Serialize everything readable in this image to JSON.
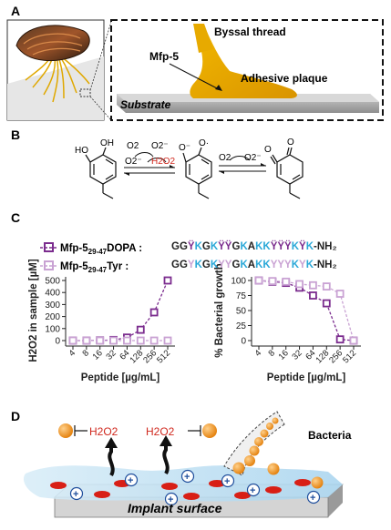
{
  "panels": {
    "a": {
      "label": "A",
      "byssal_thread": "Byssal thread",
      "mfp": "Mfp-5",
      "plaque": "Adhesive plaque",
      "substrate": "Substrate"
    },
    "b": {
      "label": "B",
      "o2_left_top": "O2",
      "o2m_left_top": "O2⁻",
      "o2m_left_bottom": "O2⁻",
      "h2o2": "H2O2",
      "o2_right": "O2",
      "o2m_right": "O2⁻",
      "oh1": "HO",
      "oh2": "OH",
      "om1": "O⁻",
      "om2": "O·",
      "o1": "O",
      "o2": "O"
    },
    "c": {
      "label": "C",
      "legend": [
        {
          "name_prefix": "Mfp-5",
          "name_sub": "29-47",
          "name_suffix": "DOPA :",
          "color": "#7B2C8E"
        },
        {
          "name_prefix": "Mfp-5",
          "name_sub": "29-47",
          "name_suffix": "Tyr :",
          "color": "#C9A2D3"
        }
      ],
      "seq_dopa": [
        {
          "t": "GG",
          "c": "#222"
        },
        {
          "t": "Ÿ",
          "c": "#7B2C8E"
        },
        {
          "t": "K",
          "c": "#2AA8D8"
        },
        {
          "t": "G",
          "c": "#222"
        },
        {
          "t": "K",
          "c": "#2AA8D8"
        },
        {
          "t": "ŸŸ",
          "c": "#7B2C8E"
        },
        {
          "t": "G",
          "c": "#222"
        },
        {
          "t": "K",
          "c": "#2AA8D8"
        },
        {
          "t": "A",
          "c": "#222"
        },
        {
          "t": "KK",
          "c": "#2AA8D8"
        },
        {
          "t": "ŸŸŸ",
          "c": "#7B2C8E"
        },
        {
          "t": "K",
          "c": "#2AA8D8"
        },
        {
          "t": "Ÿ",
          "c": "#7B2C8E"
        },
        {
          "t": "K",
          "c": "#2AA8D8"
        },
        {
          "t": "-NH₂",
          "c": "#222"
        }
      ],
      "seq_tyr": [
        {
          "t": "GG",
          "c": "#222"
        },
        {
          "t": "Y",
          "c": "#C9A2D3"
        },
        {
          "t": "K",
          "c": "#2AA8D8"
        },
        {
          "t": "G",
          "c": "#222"
        },
        {
          "t": "K",
          "c": "#2AA8D8"
        },
        {
          "t": "YY",
          "c": "#C9A2D3"
        },
        {
          "t": "G",
          "c": "#222"
        },
        {
          "t": "K",
          "c": "#2AA8D8"
        },
        {
          "t": "A",
          "c": "#222"
        },
        {
          "t": "KK",
          "c": "#2AA8D8"
        },
        {
          "t": "YYY",
          "c": "#C9A2D3"
        },
        {
          "t": "K",
          "c": "#2AA8D8"
        },
        {
          "t": "Y",
          "c": "#C9A2D3"
        },
        {
          "t": "K",
          "c": "#2AA8D8"
        },
        {
          "t": "-NH₂",
          "c": "#222"
        }
      ]
    },
    "d": {
      "label": "D",
      "h2o2_left": "H2O2",
      "h2o2_right": "H2O2",
      "bacteria": "Bacteria",
      "implant": "Implant surface"
    }
  },
  "chart_data": [
    {
      "type": "line",
      "ylabel": "H2O2 in sample [µM]",
      "xlabel": "Peptide [µg/mL]",
      "x": [
        "4",
        "8",
        "16",
        "32",
        "64",
        "128",
        "256",
        "512"
      ],
      "ylim": [
        0,
        500
      ],
      "yticks": [
        0,
        100,
        200,
        300,
        400,
        500
      ],
      "series": [
        {
          "name": "Mfp-5 29-47 DOPA",
          "color": "#7B2C8E",
          "values": [
            0,
            0,
            2,
            5,
            25,
            90,
            235,
            500
          ]
        },
        {
          "name": "Mfp-5 29-47 Tyr",
          "color": "#C9A2D3",
          "values": [
            0,
            0,
            0,
            0,
            0,
            0,
            0,
            0
          ]
        }
      ]
    },
    {
      "type": "line",
      "ylabel": "% Bacterial growth",
      "xlabel": "Peptide [µg/mL]",
      "x": [
        "4",
        "8",
        "16",
        "32",
        "64",
        "128",
        "256",
        "512"
      ],
      "ylim": [
        0,
        100
      ],
      "yticks": [
        0,
        25,
        50,
        75,
        100
      ],
      "series": [
        {
          "name": "Mfp-5 29-47 DOPA",
          "color": "#7B2C8E",
          "values": [
            100,
            98,
            96,
            88,
            75,
            62,
            2,
            0
          ]
        },
        {
          "name": "Mfp-5 29-47 Tyr",
          "color": "#C9A2D3",
          "values": [
            100,
            99,
            98,
            94,
            92,
            90,
            78,
            0
          ]
        }
      ]
    }
  ]
}
